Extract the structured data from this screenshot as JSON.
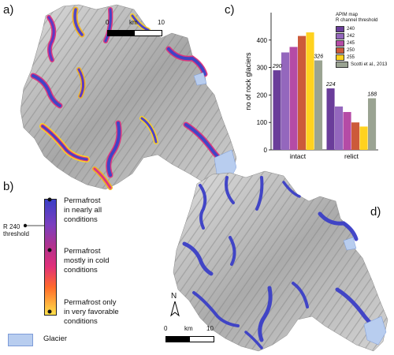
{
  "panels": {
    "a": "a)",
    "b": "b)",
    "c": "c)",
    "d": "d)"
  },
  "scale_top": {
    "zero": "0",
    "unit": "km",
    "max": "10"
  },
  "scale_bottom": {
    "zero": "0",
    "unit": "km",
    "max": "10",
    "north": "N"
  },
  "legend_b": {
    "r_label": "R 240\nthreshold",
    "top_label": "Permafrost\nin nearly all\nconditions",
    "mid_label": "Permafrost\nmostly in cold\nconditions",
    "bot_label": "Permafrost only\nin very favorable\nconditions",
    "glacier_label": "Glacier",
    "glacier_color": "#b8cdef"
  },
  "chart_data": {
    "type": "bar",
    "ylabel": "no of rock glaciers",
    "categories": [
      "intact",
      "relict"
    ],
    "ylim": [
      0,
      500
    ],
    "yticks": [
      0,
      100,
      200,
      300,
      400
    ],
    "legend_title": "APIM map\nR channel threshold",
    "series": [
      {
        "name": "240",
        "color": "#6a3d9a",
        "values": [
          290,
          224
        ]
      },
      {
        "name": "242",
        "color": "#9467bd",
        "values": [
          355,
          158
        ]
      },
      {
        "name": "245",
        "color": "#b54ba6",
        "values": [
          375,
          138
        ]
      },
      {
        "name": "250",
        "color": "#cc5a3a",
        "values": [
          415,
          100
        ]
      },
      {
        "name": "255",
        "color": "#ffd21f",
        "values": [
          428,
          85
        ]
      },
      {
        "name": "Scotti et al., 2013",
        "color": "#9aa392",
        "values": [
          326,
          188
        ]
      }
    ],
    "data_labels": {
      "intact_first": "290",
      "intact_last": "326",
      "relict_first": "224",
      "relict_last": "188"
    }
  },
  "colors": {
    "terrain_light": "#e6e6e6",
    "terrain_dark": "#8a8a8a",
    "permafrost_blue": "#3b3fc7",
    "permafrost_violet": "#7b3fbf",
    "permafrost_pink": "#e0307a",
    "permafrost_yellow": "#ffe14a"
  }
}
